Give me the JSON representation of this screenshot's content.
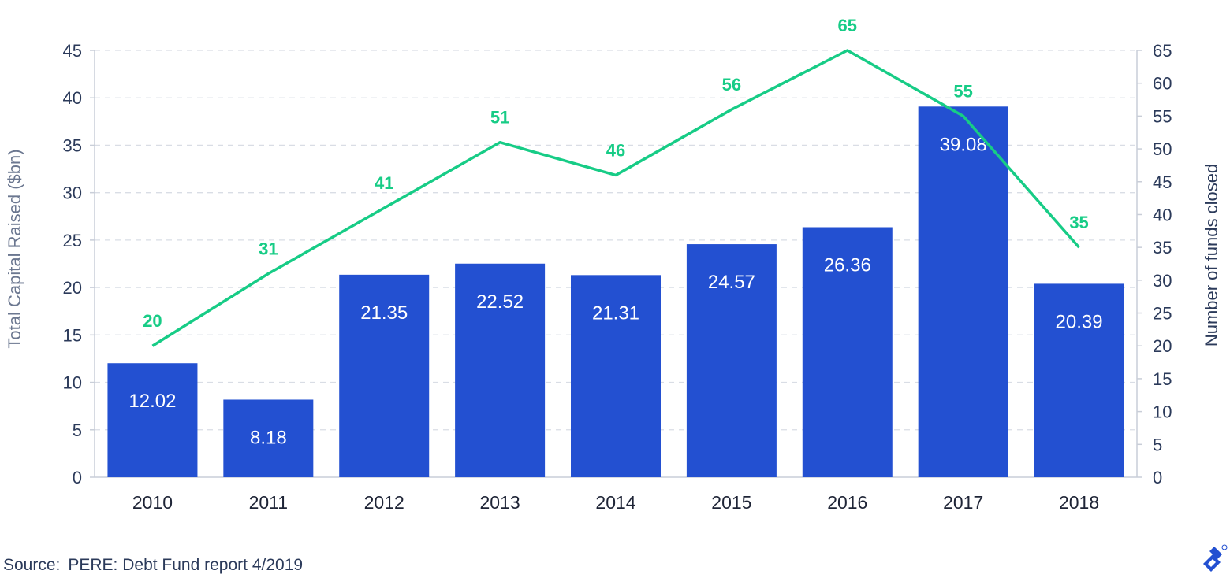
{
  "chart_data": {
    "type": "bar",
    "categories": [
      "2010",
      "2011",
      "2012",
      "2013",
      "2014",
      "2015",
      "2016",
      "2017",
      "2018"
    ],
    "series": [
      {
        "type": "bar",
        "axis": "left",
        "values": [
          12.02,
          8.18,
          21.35,
          22.52,
          21.31,
          24.57,
          26.36,
          39.08,
          20.39
        ],
        "labels": [
          "12.02",
          "8.18",
          "21.35",
          "22.52",
          "21.31",
          "24.57",
          "26.36",
          "39.08",
          "20.39"
        ]
      },
      {
        "type": "line",
        "axis": "right",
        "values": [
          20,
          31,
          41,
          51,
          46,
          56,
          65,
          55,
          35
        ],
        "labels": [
          "20",
          "31",
          "41",
          "51",
          "46",
          "56",
          "65",
          "55",
          "35"
        ]
      }
    ],
    "ylabel": "Total Capital Raised ($bn)",
    "y2label": "Number of funds closed",
    "ylim": [
      0,
      45
    ],
    "y2lim": [
      0,
      65
    ],
    "yticks": [
      "0",
      "5",
      "10",
      "15",
      "20",
      "25",
      "30",
      "35",
      "40",
      "45"
    ],
    "y2ticks": [
      "0",
      "5",
      "10",
      "15",
      "20",
      "25",
      "30",
      "35",
      "40",
      "45",
      "50",
      "55",
      "60",
      "65"
    ],
    "grid": true,
    "colors": {
      "bar": "#2350d1",
      "line": "#17cc86",
      "axis_text": "#2b3a5a",
      "ylabel": "#6b7790",
      "grid": "#d9dde5"
    }
  },
  "footer": {
    "source_label": "Source:",
    "source_text": "PERE: Debt Fund report 4/2019",
    "logo_icon": "toptal-logo-icon"
  }
}
